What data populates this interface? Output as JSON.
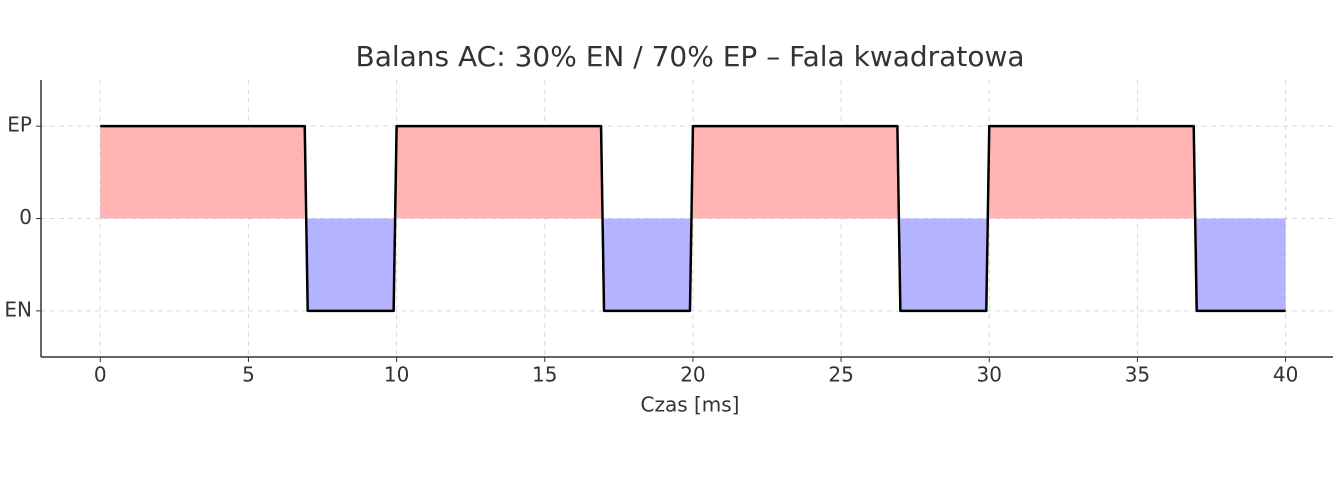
{
  "chart_data": {
    "type": "line",
    "title": "Balans AC: 30% EN / 70% EP – Fala kwadratowa",
    "x_label": "Czas [ms]",
    "x": [
      0,
      6.9,
      7,
      9.9,
      10,
      16.9,
      17,
      19.9,
      20,
      26.9,
      27,
      29.9,
      30,
      36.9,
      37,
      40
    ],
    "series": [
      {
        "color": "#000000",
        "fill_positive": "#ffb3b3",
        "fill_negative": "#b3b3ff",
        "values": [
          1,
          1,
          -1,
          -1,
          1,
          1,
          -1,
          -1,
          1,
          1,
          -1,
          -1,
          1,
          1,
          -1,
          -1
        ]
      }
    ],
    "xlim": [
      -2,
      41.6
    ],
    "xticks": [
      0,
      5,
      10,
      15,
      20,
      25,
      30,
      35,
      40
    ],
    "ylim": [
      -1.5,
      1.5
    ],
    "yticks": [
      {
        "value": -1,
        "label": "EN"
      },
      0,
      {
        "value": 1,
        "label": "EP"
      }
    ],
    "grid": true
  }
}
